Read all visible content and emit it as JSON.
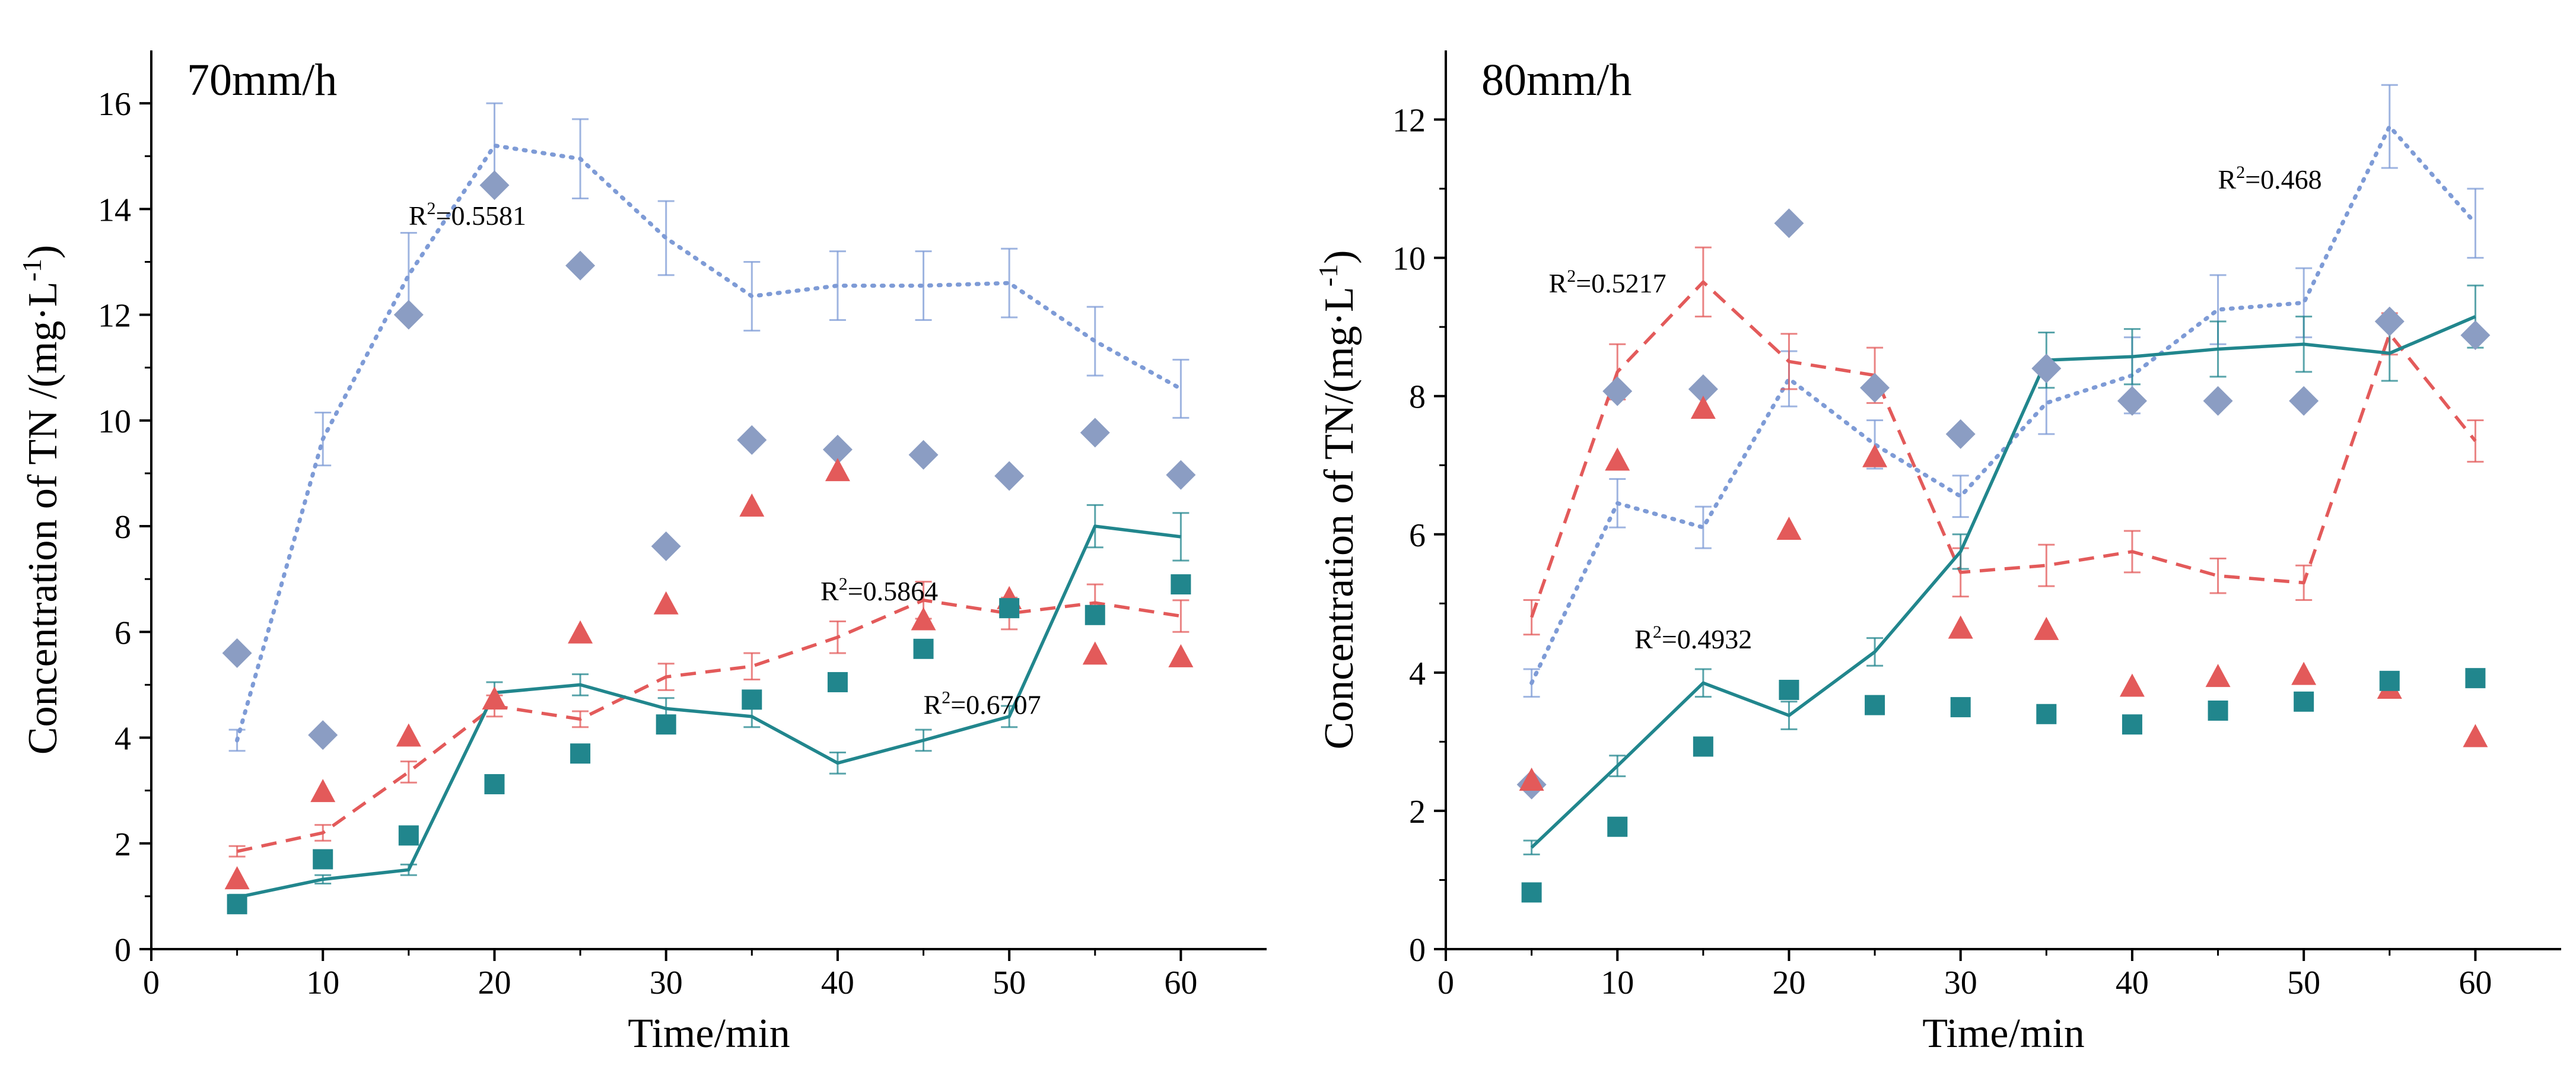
{
  "chart_data": [
    {
      "type": "scatter",
      "title": "70mm/h",
      "xlabel": "Time/min",
      "ylabel": "Concentration of TN /(mg·L",
      "ylabel_sup": "-1",
      "ylabel_end": ")",
      "xlim": [
        0,
        65
      ],
      "ylim": [
        0,
        17
      ],
      "xticks": [
        0,
        10,
        20,
        30,
        40,
        50,
        60
      ],
      "yticks": [
        0,
        2,
        4,
        6,
        8,
        10,
        12,
        14,
        16
      ],
      "x": [
        5,
        10,
        15,
        20,
        25,
        30,
        35,
        40,
        45,
        50,
        55,
        60
      ],
      "series": [
        {
          "name": "diamond points",
          "marker": "diamond",
          "color": "#8b9dc3",
          "values": [
            5.6,
            4.05,
            12.0,
            14.45,
            12.93,
            7.62,
            9.63,
            9.45,
            9.35,
            8.95,
            9.77,
            8.97
          ]
        },
        {
          "name": "triangle points",
          "marker": "triangle",
          "color": "#e35a5a",
          "values": [
            1.3,
            2.95,
            4.0,
            4.7,
            5.95,
            6.5,
            8.35,
            9.02,
            6.2,
            6.6,
            5.55,
            5.5
          ]
        },
        {
          "name": "square points",
          "marker": "square",
          "color": "#21868d",
          "values": [
            0.85,
            1.7,
            2.15,
            3.12,
            3.7,
            4.25,
            4.72,
            5.05,
            5.68,
            6.45,
            6.32,
            6.9
          ]
        }
      ],
      "fits": [
        {
          "name": "dotted fit",
          "style": "dotted",
          "color": "#7e9bd6",
          "values": [
            3.95,
            9.65,
            12.75,
            15.2,
            14.95,
            13.45,
            12.35,
            12.55,
            12.55,
            12.6,
            11.5,
            10.6
          ],
          "errors": [
            0.2,
            0.5,
            0.8,
            0.8,
            0.75,
            0.7,
            0.65,
            0.65,
            0.65,
            0.65,
            0.65,
            0.55
          ],
          "label": "R",
          "label_sup": "2",
          "label_value": "=0.5581",
          "label_anchor": [
            15,
            13.7
          ]
        },
        {
          "name": "dashed fit",
          "style": "dashed",
          "color": "#e35a5a",
          "values": [
            1.85,
            2.2,
            3.35,
            4.6,
            4.35,
            5.15,
            5.35,
            5.9,
            6.6,
            6.35,
            6.55,
            6.3
          ],
          "errors": [
            0.1,
            0.15,
            0.2,
            0.2,
            0.15,
            0.25,
            0.25,
            0.3,
            0.35,
            0.3,
            0.35,
            0.3
          ],
          "label": "R",
          "label_sup": "2",
          "label_value": "=0.5864",
          "label_anchor": [
            39,
            6.6
          ]
        },
        {
          "name": "solid fit",
          "style": "solid",
          "color": "#21868d",
          "values": [
            0.98,
            1.32,
            1.5,
            4.85,
            5.0,
            4.55,
            4.4,
            3.52,
            3.95,
            4.4,
            8.0,
            7.8
          ],
          "errors": [
            0.05,
            0.08,
            0.1,
            0.2,
            0.2,
            0.2,
            0.2,
            0.2,
            0.2,
            0.2,
            0.4,
            0.45
          ],
          "label": "R",
          "label_sup": "2",
          "label_value": "=0.6707",
          "label_anchor": [
            45,
            4.45
          ]
        }
      ]
    },
    {
      "type": "scatter",
      "title": "80mm/h",
      "xlabel": "Time/min",
      "ylabel": "Concentration of TN/(mg·L",
      "ylabel_sup": "-1",
      "ylabel_end": ")",
      "xlim": [
        0,
        65
      ],
      "ylim": [
        0,
        13
      ],
      "xticks": [
        0,
        10,
        20,
        30,
        40,
        50,
        60
      ],
      "yticks": [
        0,
        2,
        4,
        6,
        8,
        10,
        12
      ],
      "x": [
        5,
        10,
        15,
        20,
        25,
        30,
        35,
        40,
        45,
        50,
        55,
        60
      ],
      "series": [
        {
          "name": "diamond points",
          "marker": "diamond",
          "color": "#8b9dc3",
          "values": [
            2.38,
            8.07,
            8.1,
            10.5,
            8.12,
            7.45,
            8.4,
            7.93,
            7.93,
            7.93,
            9.08,
            8.88
          ]
        },
        {
          "name": "triangle points",
          "marker": "triangle",
          "color": "#e35a5a",
          "values": [
            2.42,
            7.05,
            7.8,
            6.05,
            7.1,
            4.62,
            4.6,
            3.78,
            3.92,
            3.95,
            3.75,
            3.05
          ]
        },
        {
          "name": "square points",
          "marker": "square",
          "color": "#21868d",
          "values": [
            0.82,
            1.77,
            2.93,
            3.75,
            3.53,
            3.5,
            3.4,
            3.25,
            3.45,
            3.58,
            3.88,
            3.92
          ]
        }
      ],
      "fits": [
        {
          "name": "dotted fit",
          "style": "dotted",
          "color": "#7e9bd6",
          "values": [
            3.85,
            6.45,
            6.1,
            8.25,
            7.3,
            6.55,
            7.9,
            8.3,
            9.25,
            9.35,
            11.9,
            10.5
          ],
          "errors": [
            0.2,
            0.35,
            0.3,
            0.4,
            0.35,
            0.3,
            0.45,
            0.55,
            0.5,
            0.5,
            0.6,
            0.5
          ],
          "label": "R",
          "label_sup": "2",
          "label_value": "=0.468",
          "label_anchor": [
            45,
            11.0
          ]
        },
        {
          "name": "dashed fit",
          "style": "dashed",
          "color": "#e35a5a",
          "values": [
            4.8,
            8.35,
            9.65,
            8.5,
            8.3,
            5.45,
            5.55,
            5.75,
            5.4,
            5.3,
            8.9,
            7.35
          ],
          "errors": [
            0.25,
            0.4,
            0.5,
            0.4,
            0.4,
            0.35,
            0.3,
            0.3,
            0.25,
            0.25,
            0.3,
            0.3
          ],
          "label": "R",
          "label_sup": "2",
          "label_value": "=0.5217",
          "label_anchor": [
            6,
            9.5
          ]
        },
        {
          "name": "solid fit",
          "style": "solid",
          "color": "#21868d",
          "values": [
            1.47,
            2.65,
            3.85,
            3.38,
            4.3,
            5.75,
            8.52,
            8.57,
            8.68,
            8.75,
            8.62,
            9.15
          ],
          "errors": [
            0.1,
            0.15,
            0.2,
            0.2,
            0.2,
            0.25,
            0.4,
            0.4,
            0.4,
            0.4,
            0.4,
            0.45
          ],
          "label": "R",
          "label_sup": "2",
          "label_value": "=0.4932",
          "label_anchor": [
            11,
            4.35
          ]
        }
      ]
    }
  ]
}
